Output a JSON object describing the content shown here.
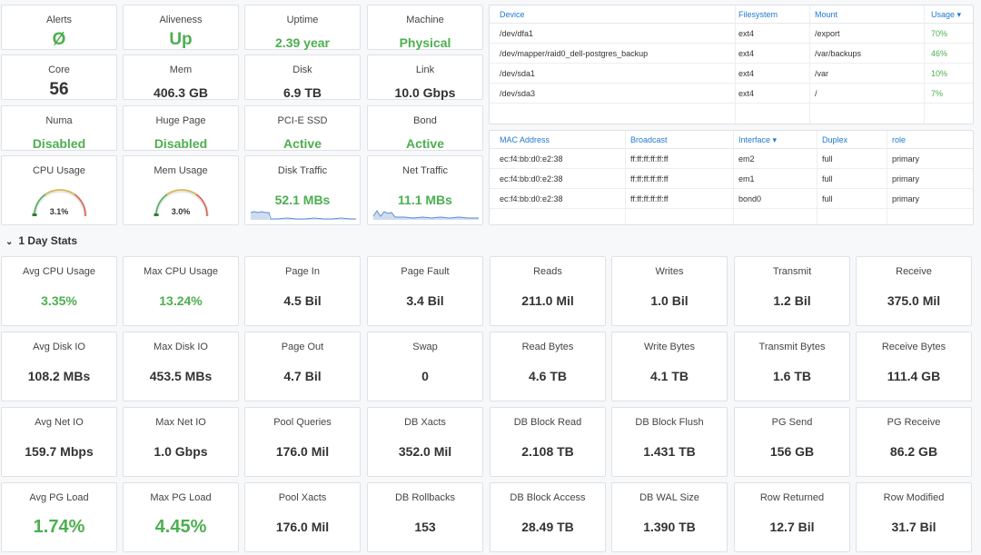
{
  "top_row1": [
    {
      "title": "Alerts",
      "value": "Ø",
      "green": true
    },
    {
      "title": "Aliveness",
      "value": "Up",
      "green": true
    },
    {
      "title": "Uptime",
      "value": "2.39 year",
      "green": true
    },
    {
      "title": "Machine",
      "value": "Physical",
      "green": true
    }
  ],
  "top_row2": [
    {
      "title": "Core",
      "value": "56",
      "green": false
    },
    {
      "title": "Mem",
      "value": "406.3 GB",
      "green": false
    },
    {
      "title": "Disk",
      "value": "6.9 TB",
      "green": false
    },
    {
      "title": "Link",
      "value": "10.0 Gbps",
      "green": false
    }
  ],
  "top_row3": [
    {
      "title": "Numa",
      "value": "Disabled",
      "green": true
    },
    {
      "title": "Huge Page",
      "value": "Disabled",
      "green": true
    },
    {
      "title": "PCI-E SSD",
      "value": "Active",
      "green": true
    },
    {
      "title": "Bond",
      "value": "Active",
      "green": true
    }
  ],
  "top_row4": {
    "cpu": {
      "title": "CPU Usage",
      "value": "3.1%",
      "percent": 3.1
    },
    "mem": {
      "title": "Mem Usage",
      "value": "3.0%",
      "percent": 3.0
    },
    "disk": {
      "title": "Disk Traffic",
      "value": "52.1 MBs"
    },
    "net": {
      "title": "Net Traffic",
      "value": "11.1 MBs"
    }
  },
  "fs_table": {
    "headers": [
      "Device",
      "Filesystem",
      "Mount",
      "Usage ▾"
    ],
    "rows": [
      [
        "/dev/dfa1",
        "ext4",
        "/export",
        "70%"
      ],
      [
        "/dev/mapper/raid0_dell-postgres_backup",
        "ext4",
        "/var/backups",
        "46%"
      ],
      [
        "/dev/sda1",
        "ext4",
        "/var",
        "10%"
      ],
      [
        "/dev/sda3",
        "ext4",
        "/",
        "7%"
      ]
    ]
  },
  "nic_table": {
    "headers": [
      "MAC Address",
      "Broadcast",
      "Interface ▾",
      "Duplex",
      "role"
    ],
    "rows": [
      [
        "ec:f4:bb:d0:e2:38",
        "ff:ff:ff:ff:ff:ff",
        "em2",
        "full",
        "primary"
      ],
      [
        "ec:f4:bb:d0:e2:38",
        "ff:ff:ff:ff:ff:ff",
        "em1",
        "full",
        "primary"
      ],
      [
        "ec:f4:bb:d0:e2:38",
        "ff:ff:ff:ff:ff:ff",
        "bond0",
        "full",
        "primary"
      ]
    ]
  },
  "section": {
    "label": "1 Day Stats"
  },
  "stats": [
    [
      {
        "title": "Avg CPU Usage",
        "value": "3.35%",
        "green": true
      },
      {
        "title": "Max CPU Usage",
        "value": "13.24%",
        "green": true
      },
      {
        "title": "Page In",
        "value": "4.5 Bil"
      },
      {
        "title": "Page Fault",
        "value": "3.4 Bil"
      },
      {
        "title": "Reads",
        "value": "211.0 Mil"
      },
      {
        "title": "Writes",
        "value": "1.0 Bil"
      },
      {
        "title": "Transmit",
        "value": "1.2 Bil"
      },
      {
        "title": "Receive",
        "value": "375.0 Mil"
      }
    ],
    [
      {
        "title": "Avg Disk IO",
        "value": "108.2 MBs"
      },
      {
        "title": "Max Disk IO",
        "value": "453.5 MBs"
      },
      {
        "title": "Page Out",
        "value": "4.7 Bil"
      },
      {
        "title": "Swap",
        "value": "0"
      },
      {
        "title": "Read Bytes",
        "value": "4.6 TB"
      },
      {
        "title": "Write Bytes",
        "value": "4.1 TB"
      },
      {
        "title": "Transmit Bytes",
        "value": "1.6 TB"
      },
      {
        "title": "Receive Bytes",
        "value": "111.4 GB"
      }
    ],
    [
      {
        "title": "Avg Net IO",
        "value": "159.7 Mbps"
      },
      {
        "title": "Max Net IO",
        "value": "1.0 Gbps"
      },
      {
        "title": "Pool Queries",
        "value": "176.0 Mil"
      },
      {
        "title": "DB Xacts",
        "value": "352.0 Mil"
      },
      {
        "title": "DB Block Read",
        "value": "2.108 TB"
      },
      {
        "title": "DB Block Flush",
        "value": "1.431 TB"
      },
      {
        "title": "PG Send",
        "value": "156 GB"
      },
      {
        "title": "PG Receive",
        "value": "86.2 GB"
      }
    ],
    [
      {
        "title": "Avg PG Load",
        "value": "1.74%",
        "green": true,
        "xl": true
      },
      {
        "title": "Max PG Load",
        "value": "4.45%",
        "green": true,
        "xl": true
      },
      {
        "title": "Pool Xacts",
        "value": "176.0 Mil"
      },
      {
        "title": "DB Rollbacks",
        "value": "153"
      },
      {
        "title": "DB Block Access",
        "value": "28.49 TB"
      },
      {
        "title": "DB WAL Size",
        "value": "1.390 TB"
      },
      {
        "title": "Row Returned",
        "value": "12.7 Bil"
      },
      {
        "title": "Row Modified",
        "value": "31.7 Bil"
      }
    ]
  ]
}
